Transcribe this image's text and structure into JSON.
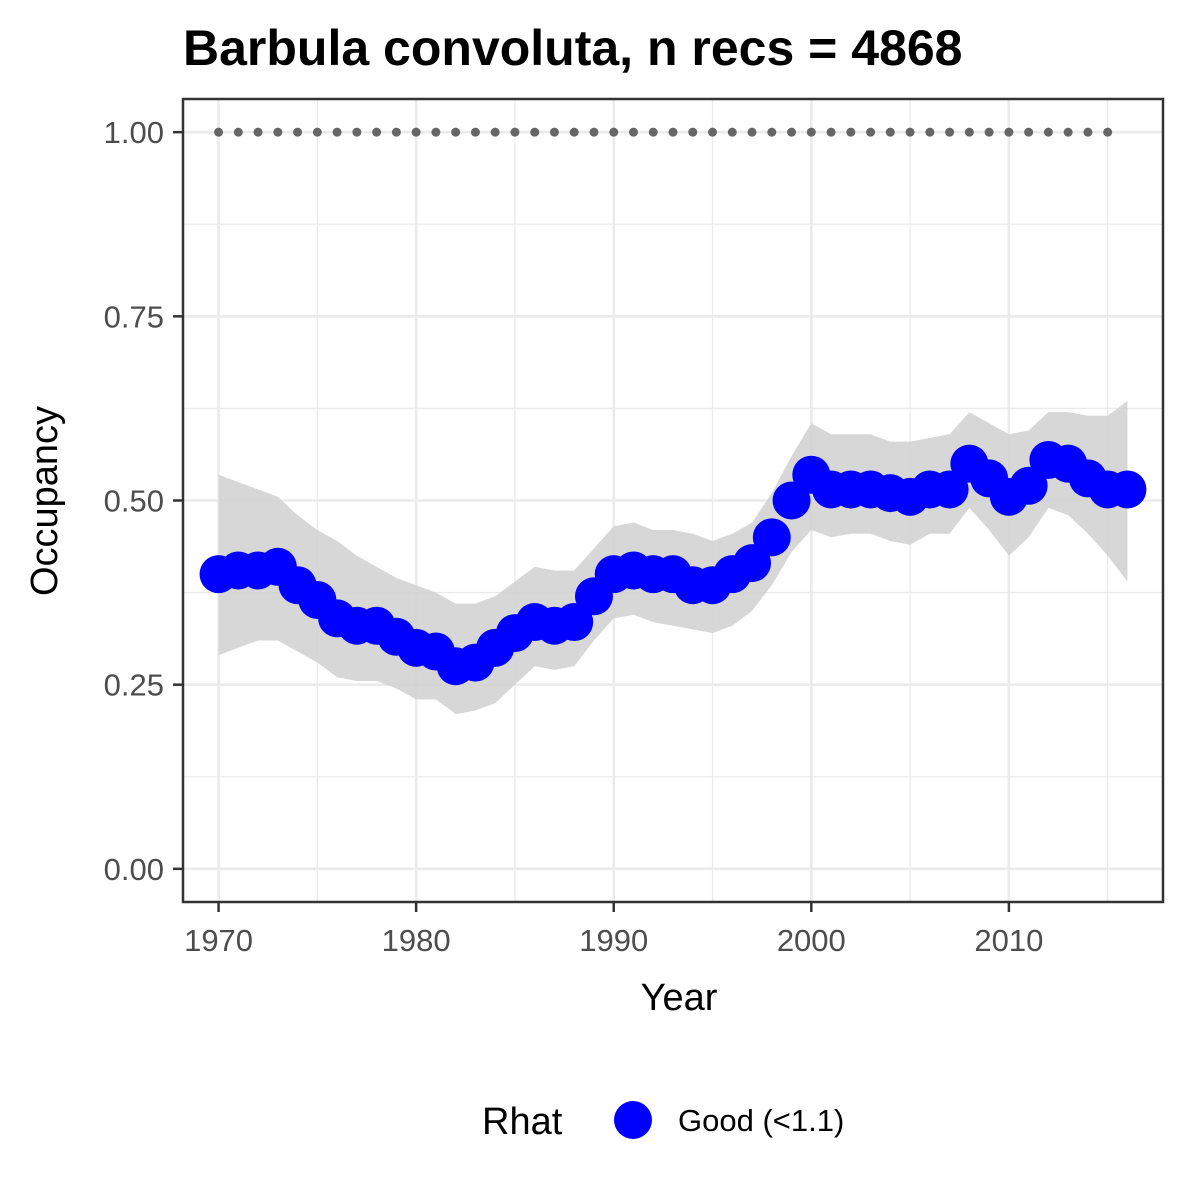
{
  "chart_data": {
    "type": "line",
    "title": "Barbula convoluta, n recs = 4868",
    "xlabel": "Year",
    "ylabel": "Occupancy",
    "xlim": [
      1968.2,
      2017.8
    ],
    "ylim": [
      -0.045,
      1.045
    ],
    "x_ticks": [
      1970,
      1980,
      1990,
      2000,
      2010
    ],
    "x_tick_labels": [
      "1970",
      "1980",
      "1990",
      "2000",
      "2010"
    ],
    "y_ticks": [
      0,
      0.25,
      0.5,
      0.75,
      1.0
    ],
    "y_tick_labels": [
      "0.00",
      "0.25",
      "0.50",
      "0.75",
      "1.00"
    ],
    "grid": true,
    "legend": {
      "title": "Rhat",
      "position": "bottom",
      "entries": [
        {
          "label": "Good (<1.1)",
          "color": "#0000ff"
        }
      ]
    },
    "colors": {
      "points": "#0000ff",
      "ribbon": "#d3d3d3",
      "reference": "#666666",
      "grid": "#ebebeb",
      "border": "#333333"
    },
    "series": [
      {
        "x": [
          1970,
          1971,
          1972,
          1973,
          1974,
          1975,
          1976,
          1977,
          1978,
          1979,
          1980,
          1981,
          1982,
          1983,
          1984,
          1985,
          1986,
          1987,
          1988,
          1989,
          1990,
          1991,
          1992,
          1993,
          1994,
          1995,
          1996,
          1997,
          1998,
          1999,
          2000,
          2001,
          2002,
          2003,
          2004,
          2005,
          2006,
          2007,
          2008,
          2009,
          2010,
          2011,
          2012,
          2013,
          2014,
          2015,
          2016
        ],
        "y": [
          0.4,
          0.405,
          0.405,
          0.41,
          0.385,
          0.365,
          0.34,
          0.33,
          0.33,
          0.315,
          0.3,
          0.295,
          0.275,
          0.28,
          0.3,
          0.32,
          0.335,
          0.33,
          0.335,
          0.37,
          0.4,
          0.405,
          0.4,
          0.4,
          0.385,
          0.385,
          0.4,
          0.415,
          0.45,
          0.5,
          0.535,
          0.515,
          0.515,
          0.515,
          0.51,
          0.505,
          0.515,
          0.515,
          0.55,
          0.53,
          0.505,
          0.52,
          0.555,
          0.55,
          0.53,
          0.515,
          0.515
        ],
        "lower": [
          0.29,
          0.3,
          0.31,
          0.31,
          0.295,
          0.28,
          0.26,
          0.255,
          0.255,
          0.245,
          0.23,
          0.23,
          0.21,
          0.215,
          0.225,
          0.25,
          0.275,
          0.27,
          0.275,
          0.31,
          0.34,
          0.345,
          0.335,
          0.33,
          0.325,
          0.32,
          0.33,
          0.35,
          0.385,
          0.43,
          0.46,
          0.45,
          0.455,
          0.455,
          0.445,
          0.44,
          0.455,
          0.455,
          0.49,
          0.46,
          0.425,
          0.45,
          0.49,
          0.48,
          0.455,
          0.425,
          0.39
        ],
        "upper": [
          0.535,
          0.525,
          0.515,
          0.505,
          0.48,
          0.46,
          0.445,
          0.425,
          0.41,
          0.395,
          0.385,
          0.375,
          0.36,
          0.36,
          0.37,
          0.39,
          0.41,
          0.405,
          0.405,
          0.435,
          0.465,
          0.47,
          0.46,
          0.46,
          0.455,
          0.445,
          0.455,
          0.47,
          0.51,
          0.56,
          0.605,
          0.59,
          0.59,
          0.59,
          0.58,
          0.58,
          0.585,
          0.59,
          0.62,
          0.605,
          0.59,
          0.595,
          0.62,
          0.62,
          0.615,
          0.615,
          0.635
        ]
      },
      {
        "x": [
          1970,
          1971,
          1972,
          1973,
          1974,
          1975,
          1976,
          1977,
          1978,
          1979,
          1980,
          1981,
          1982,
          1983,
          1984,
          1985,
          1986,
          1987,
          1988,
          1989,
          1990,
          1991,
          1992,
          1993,
          1994,
          1995,
          1996,
          1997,
          1998,
          1999,
          2000,
          2001,
          2002,
          2003,
          2004,
          2005,
          2006,
          2007,
          2008,
          2009,
          2010,
          2011,
          2012,
          2013,
          2014,
          2015
        ],
        "y": [
          1,
          1,
          1,
          1,
          1,
          1,
          1,
          1,
          1,
          1,
          1,
          1,
          1,
          1,
          1,
          1,
          1,
          1,
          1,
          1,
          1,
          1,
          1,
          1,
          1,
          1,
          1,
          1,
          1,
          1,
          1,
          1,
          1,
          1,
          1,
          1,
          1,
          1,
          1,
          1,
          1,
          1,
          1,
          1,
          1,
          1
        ]
      }
    ]
  }
}
